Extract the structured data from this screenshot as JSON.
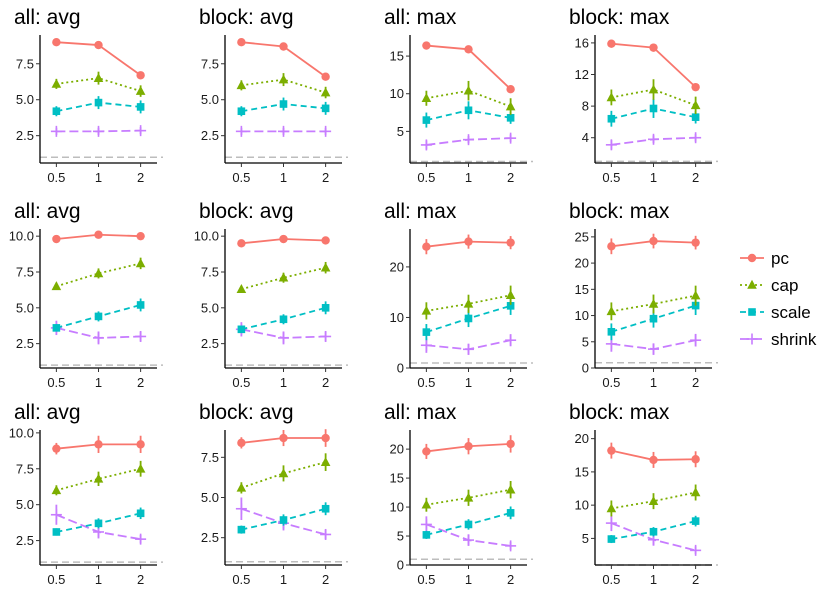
{
  "chart_data": {
    "type": "line",
    "layout": "3x4 facet grid",
    "x": [
      0.5,
      1,
      2
    ],
    "x_tick_labels": [
      "0.5",
      "1",
      "2"
    ],
    "reference_line": {
      "y": 1,
      "style": "dashed",
      "color": "#bdbdbd"
    },
    "legend": {
      "placement": "right",
      "entries": [
        {
          "name": "pc",
          "color": "#F8766D",
          "marker": "circle",
          "line": "solid"
        },
        {
          "name": "cap",
          "color": "#7CAE00",
          "marker": "triangle",
          "line": "dotted"
        },
        {
          "name": "scale",
          "color": "#00BFC4",
          "marker": "square",
          "line": "dashed"
        },
        {
          "name": "shrink",
          "color": "#C77CFF",
          "marker": "plus",
          "line": "longdash"
        }
      ]
    },
    "panels": [
      {
        "title": "all: avg",
        "ylim": [
          0.6,
          9.5
        ],
        "yticks": [
          2.5,
          5.0,
          7.5
        ],
        "ytick_labels": [
          "2.5",
          "5.0",
          "7.5"
        ],
        "series": {
          "pc": [
            9.0,
            8.8,
            6.7
          ],
          "cap": [
            6.1,
            6.5,
            5.6
          ],
          "scale": [
            4.2,
            4.8,
            4.5
          ],
          "shrink": [
            2.8,
            2.8,
            2.85
          ]
        },
        "errors": {
          "pc": [
            0.15,
            0.15,
            0.15
          ],
          "cap": [
            0.35,
            0.45,
            0.4
          ],
          "scale": [
            0.35,
            0.45,
            0.45
          ],
          "shrink": [
            0.25,
            0.25,
            0.25
          ]
        }
      },
      {
        "title": "block: avg",
        "ylim": [
          0.6,
          9.5
        ],
        "yticks": [
          2.5,
          5.0,
          7.5
        ],
        "ytick_labels": [
          "2.5",
          "5.0",
          "7.5"
        ],
        "series": {
          "pc": [
            9.0,
            8.7,
            6.6
          ],
          "cap": [
            6.0,
            6.4,
            5.5
          ],
          "scale": [
            4.2,
            4.7,
            4.4
          ],
          "shrink": [
            2.8,
            2.8,
            2.8
          ]
        },
        "errors": {
          "pc": [
            0.15,
            0.15,
            0.15
          ],
          "cap": [
            0.35,
            0.45,
            0.4
          ],
          "scale": [
            0.35,
            0.45,
            0.45
          ],
          "shrink": [
            0.25,
            0.25,
            0.25
          ]
        }
      },
      {
        "title": "all: max",
        "ylim": [
          0.8,
          17.8
        ],
        "yticks": [
          5,
          10,
          15
        ],
        "ytick_labels": [
          "5",
          "10",
          "15"
        ],
        "series": {
          "pc": [
            16.4,
            15.9,
            10.6
          ],
          "cap": [
            9.4,
            10.4,
            8.3
          ],
          "scale": [
            6.5,
            7.8,
            6.8
          ],
          "shrink": [
            3.2,
            3.9,
            4.1
          ]
        },
        "errors": {
          "pc": [
            0.5,
            0.5,
            0.3
          ],
          "cap": [
            1.0,
            1.3,
            1.1
          ],
          "scale": [
            1.0,
            1.2,
            0.8
          ],
          "shrink": [
            0.6,
            0.5,
            0.5
          ]
        }
      },
      {
        "title": "block: max",
        "ylim": [
          0.8,
          17.0
        ],
        "yticks": [
          4,
          8,
          12,
          16
        ],
        "ytick_labels": [
          "4",
          "8",
          "12",
          "16"
        ],
        "series": {
          "pc": [
            15.9,
            15.4,
            10.4
          ],
          "cap": [
            9.1,
            10.1,
            8.1
          ],
          "scale": [
            6.4,
            7.7,
            6.6
          ],
          "shrink": [
            3.1,
            3.8,
            4.0
          ]
        },
        "errors": {
          "pc": [
            0.5,
            0.5,
            0.3
          ],
          "cap": [
            1.0,
            1.3,
            1.1
          ],
          "scale": [
            1.0,
            1.2,
            0.8
          ],
          "shrink": [
            0.6,
            0.5,
            0.5
          ]
        }
      },
      {
        "title": "all: avg",
        "ylim": [
          0.8,
          10.5
        ],
        "yticks": [
          2.5,
          5.0,
          7.5,
          10.0
        ],
        "ytick_labels": [
          "2.5",
          "5.0",
          "7.5",
          "10.0"
        ],
        "series": {
          "pc": [
            9.8,
            10.1,
            10.0
          ],
          "cap": [
            6.5,
            7.4,
            8.1
          ],
          "scale": [
            3.6,
            4.4,
            5.2
          ],
          "shrink": [
            3.6,
            2.9,
            3.0
          ]
        },
        "errors": {
          "pc": [
            0.15,
            0.15,
            0.15
          ],
          "cap": [
            0.25,
            0.35,
            0.4
          ],
          "scale": [
            0.25,
            0.35,
            0.45
          ],
          "shrink": [
            0.5,
            0.45,
            0.35
          ]
        }
      },
      {
        "title": "block: avg",
        "ylim": [
          0.8,
          10.5
        ],
        "yticks": [
          2.5,
          5.0,
          7.5,
          10.0
        ],
        "ytick_labels": [
          "2.5",
          "5.0",
          "7.5",
          "10.0"
        ],
        "series": {
          "pc": [
            9.5,
            9.8,
            9.7
          ],
          "cap": [
            6.3,
            7.1,
            7.8
          ],
          "scale": [
            3.5,
            4.2,
            5.0
          ],
          "shrink": [
            3.5,
            2.9,
            3.0
          ]
        },
        "errors": {
          "pc": [
            0.15,
            0.15,
            0.15
          ],
          "cap": [
            0.25,
            0.35,
            0.4
          ],
          "scale": [
            0.25,
            0.35,
            0.45
          ],
          "shrink": [
            0.5,
            0.45,
            0.35
          ]
        }
      },
      {
        "title": "all: max",
        "ylim": [
          0,
          27.5
        ],
        "yticks": [
          0,
          10,
          20
        ],
        "ytick_labels": [
          "0",
          "10",
          "20"
        ],
        "series": {
          "pc": [
            24.0,
            25.0,
            24.8
          ],
          "cap": [
            11.3,
            12.7,
            14.4
          ],
          "scale": [
            7.1,
            9.8,
            12.3
          ],
          "shrink": [
            4.5,
            3.7,
            5.5
          ]
        },
        "errors": {
          "pc": [
            1.5,
            1.4,
            1.3
          ],
          "cap": [
            1.7,
            1.8,
            1.9
          ],
          "scale": [
            1.6,
            1.7,
            1.8
          ],
          "shrink": [
            1.5,
            1.1,
            1.2
          ]
        }
      },
      {
        "title": "block: max",
        "ylim": [
          0,
          26.5
        ],
        "yticks": [
          0,
          5,
          10,
          15,
          20,
          25
        ],
        "ytick_labels": [
          "0",
          "5",
          "10",
          "15",
          "20",
          "25"
        ],
        "series": {
          "pc": [
            23.2,
            24.2,
            23.9
          ],
          "cap": [
            10.8,
            12.2,
            13.8
          ],
          "scale": [
            6.9,
            9.4,
            11.9
          ],
          "shrink": [
            4.6,
            3.6,
            5.3
          ]
        },
        "errors": {
          "pc": [
            1.5,
            1.4,
            1.3
          ],
          "cap": [
            1.7,
            1.8,
            1.9
          ],
          "scale": [
            1.6,
            1.7,
            1.8
          ],
          "shrink": [
            1.5,
            1.1,
            1.2
          ]
        }
      },
      {
        "title": "all: avg",
        "ylim": [
          0.8,
          10.2
        ],
        "yticks": [
          2.5,
          5.0,
          7.5,
          10.0
        ],
        "ytick_labels": [
          "2.5",
          "5.0",
          "7.5",
          "10.0"
        ],
        "series": {
          "pc": [
            8.9,
            9.2,
            9.2
          ],
          "cap": [
            6.0,
            6.8,
            7.5
          ],
          "scale": [
            3.1,
            3.7,
            4.4
          ],
          "shrink": [
            4.3,
            3.1,
            2.6
          ]
        },
        "errors": {
          "pc": [
            0.4,
            0.6,
            0.6
          ],
          "cap": [
            0.35,
            0.5,
            0.55
          ],
          "scale": [
            0.25,
            0.35,
            0.4
          ],
          "shrink": [
            0.7,
            0.45,
            0.3
          ]
        }
      },
      {
        "title": "block: avg",
        "ylim": [
          0.8,
          9.2
        ],
        "yticks": [
          2.5,
          5.0,
          7.5
        ],
        "ytick_labels": [
          "2.5",
          "5.0",
          "7.5"
        ],
        "series": {
          "pc": [
            8.4,
            8.7,
            8.7
          ],
          "cap": [
            5.6,
            6.5,
            7.2
          ],
          "scale": [
            3.0,
            3.6,
            4.3
          ],
          "shrink": [
            4.3,
            3.4,
            2.7
          ]
        },
        "errors": {
          "pc": [
            0.35,
            0.5,
            0.55
          ],
          "cap": [
            0.35,
            0.5,
            0.55
          ],
          "scale": [
            0.25,
            0.35,
            0.4
          ],
          "shrink": [
            0.7,
            0.45,
            0.3
          ]
        }
      },
      {
        "title": "all: max",
        "ylim": [
          0,
          23.3
        ],
        "yticks": [
          0,
          5,
          10,
          15,
          20
        ],
        "ytick_labels": [
          "0",
          "5",
          "10",
          "15",
          "20"
        ],
        "series": {
          "pc": [
            19.6,
            20.5,
            20.9
          ],
          "cap": [
            10.4,
            11.6,
            13.0
          ],
          "scale": [
            5.2,
            7.0,
            9.0
          ],
          "shrink": [
            7.0,
            4.3,
            3.3
          ]
        },
        "errors": {
          "pc": [
            1.3,
            1.4,
            1.5
          ],
          "cap": [
            1.2,
            1.4,
            1.5
          ],
          "scale": [
            0.7,
            0.9,
            1.1
          ],
          "shrink": [
            1.4,
            1.0,
            0.7
          ]
        }
      },
      {
        "title": "block: max",
        "ylim": [
          1.0,
          21.3
        ],
        "yticks": [
          5,
          10,
          15,
          20
        ],
        "ytick_labels": [
          "5",
          "10",
          "15",
          "20"
        ],
        "series": {
          "pc": [
            18.2,
            16.8,
            16.9
          ],
          "cap": [
            9.5,
            10.6,
            11.9
          ],
          "scale": [
            4.9,
            6.0,
            7.6
          ],
          "shrink": [
            7.3,
            4.8,
            3.2
          ]
        },
        "errors": {
          "pc": [
            1.2,
            1.2,
            1.2
          ],
          "cap": [
            1.2,
            1.2,
            1.2
          ],
          "scale": [
            0.6,
            0.7,
            0.8
          ],
          "shrink": [
            1.2,
            0.9,
            0.6
          ]
        }
      }
    ]
  }
}
